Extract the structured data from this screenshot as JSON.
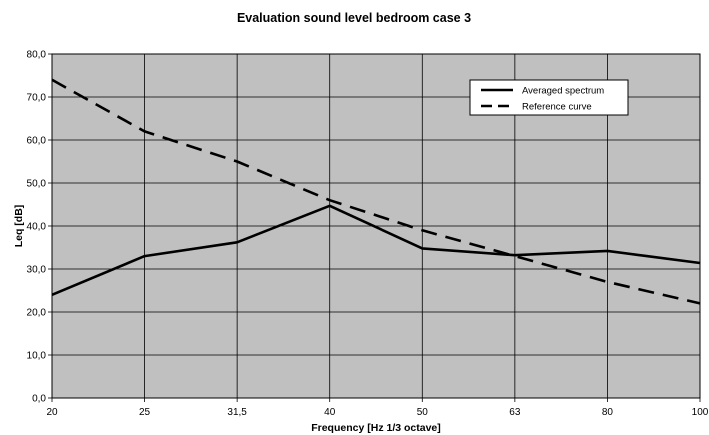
{
  "chart_data": {
    "type": "line",
    "title": "Evaluation sound level bedroom case 3",
    "xlabel": "Frequency [Hz 1/3 octave]",
    "ylabel": "Leq [dB]",
    "categories": [
      "20",
      "25",
      "31,5",
      "40",
      "50",
      "63",
      "80",
      "100"
    ],
    "ylim": [
      0,
      80
    ],
    "yticks": [
      "0,0",
      "10,0",
      "20,0",
      "30,0",
      "40,0",
      "50,0",
      "60,0",
      "70,0",
      "80,0"
    ],
    "series": [
      {
        "name": "Averaged spectrum",
        "values": [
          24.0,
          33.0,
          36.2,
          44.7,
          34.8,
          33.2,
          34.2,
          31.4
        ],
        "style": "solid",
        "color": "#000000"
      },
      {
        "name": "Reference curve",
        "values": [
          74.0,
          62.0,
          55.0,
          46.0,
          39.0,
          33.0,
          27.0,
          22.0
        ],
        "style": "dashed",
        "color": "#000000"
      }
    ],
    "grid": true,
    "plot_background": "#c0c0c0",
    "legend_position": "top-right"
  }
}
